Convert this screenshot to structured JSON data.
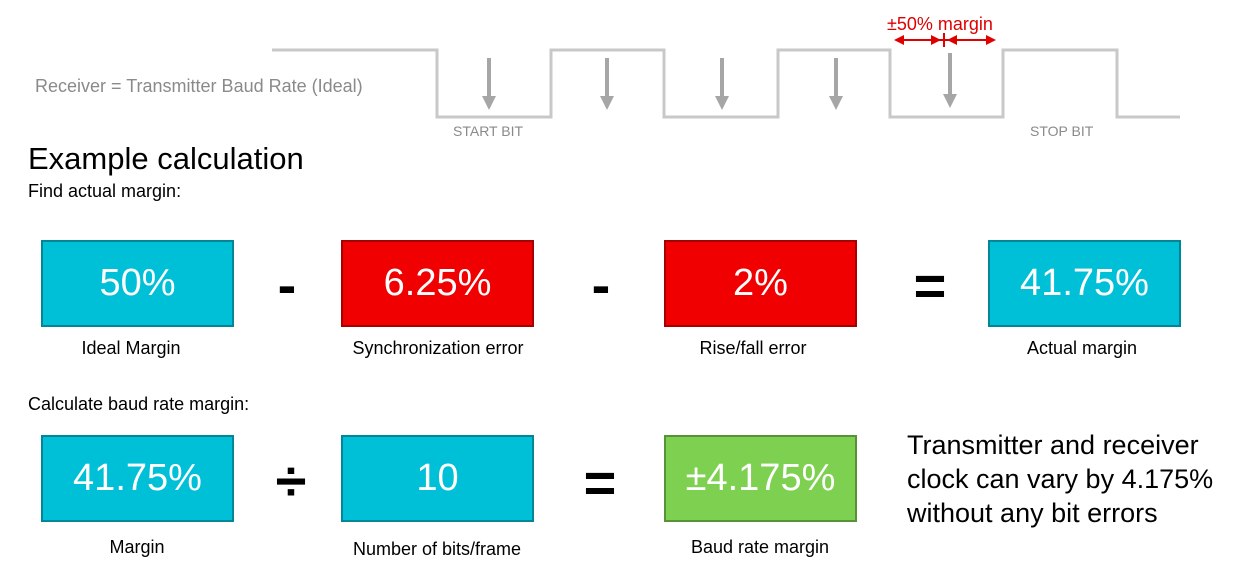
{
  "waveform": {
    "label": "Receiver = Transmitter Baud Rate (Ideal)",
    "start_bit_label": "START BIT",
    "stop_bit_label": "STOP BIT",
    "margin_label": "±50% margin",
    "colors": {
      "line": "#c8c8c8",
      "arrow": "#a6a6a6",
      "margin": "#e00000",
      "label": "#8a8a8a"
    }
  },
  "heading": "Example calculation",
  "actual_margin": {
    "subtitle": "Find actual margin:",
    "terms": [
      {
        "value": "50%",
        "caption": "Ideal Margin",
        "color": "#00c0d8"
      },
      {
        "value": "6.25%",
        "caption": "Synchronization error",
        "color": "#f00000"
      },
      {
        "value": "2%",
        "caption": "Rise/fall error",
        "color": "#f00000"
      },
      {
        "value": "41.75%",
        "caption": "Actual margin",
        "color": "#00c0d8"
      }
    ],
    "operators": [
      "-",
      "-",
      "="
    ]
  },
  "baud_margin": {
    "subtitle": "Calculate baud rate margin:",
    "terms": [
      {
        "value": "41.75%",
        "caption": "Margin",
        "color": "#00c0d8"
      },
      {
        "value": "10",
        "caption": "Number of bits/frame",
        "color": "#00c0d8"
      },
      {
        "value": "±4.175%",
        "caption": "Baud rate margin",
        "color": "#7ed050"
      }
    ],
    "operators": [
      "÷",
      "="
    ]
  },
  "note_lines": [
    "Transmitter and receiver",
    "clock can vary by 4.175%",
    "without any bit errors"
  ]
}
